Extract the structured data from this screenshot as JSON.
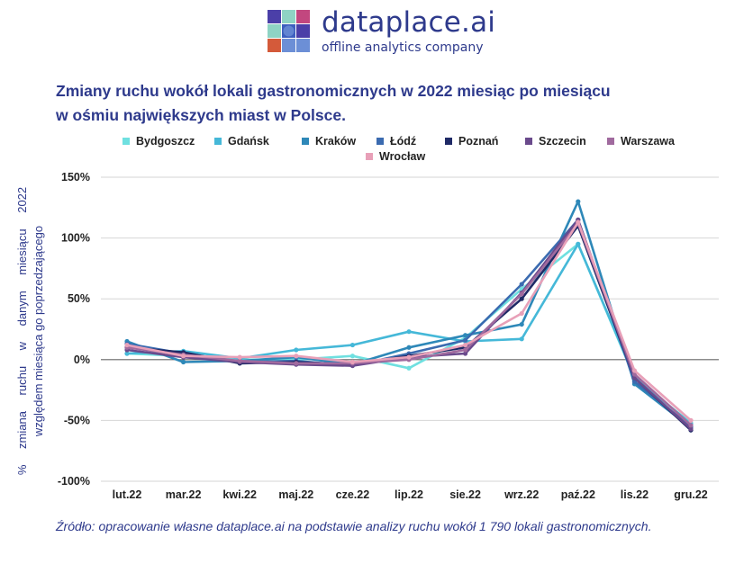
{
  "brand": {
    "name": "dataplace.ai",
    "tagline": "offline analytics company",
    "colors": [
      "#2e3a8c",
      "#4b3fa8",
      "#8fd3c4",
      "#c2477f",
      "#e0a03a",
      "#6c8fd6",
      "#3d5fbf",
      "#d45a3a"
    ]
  },
  "chart_data": {
    "type": "line",
    "title_lines": [
      "Zmiany ruchu wokół lokali gastronomicznych w 2022 miesiąc po miesiącu",
      "w ośmiu największych miast w Polsce."
    ],
    "ylabel_lines": [
      "% zmiana ruchu w danym miesiącu 2022",
      "względem miesiąca go poprzedzającego"
    ],
    "categories": [
      "lut.22",
      "mar.22",
      "kwi.22",
      "maj.22",
      "cze.22",
      "lip.22",
      "sie.22",
      "wrz.22",
      "paź.22",
      "lis.22",
      "gru.22"
    ],
    "ylim": [
      -100,
      150
    ],
    "yticks": [
      150,
      100,
      50,
      0,
      -50,
      -100
    ],
    "ytick_labels": [
      "150%",
      "100%",
      "50%",
      "0%",
      "-50%",
      "-100%"
    ],
    "grid": true,
    "legend_position": "top",
    "series": [
      {
        "name": "Bydgoszcz",
        "color": "#6fe0e0",
        "values": [
          5,
          3,
          0,
          0,
          3,
          -7,
          18,
          58,
          95,
          -15,
          -52
        ]
      },
      {
        "name": "Gdańsk",
        "color": "#45b8d8",
        "values": [
          5,
          7,
          1,
          8,
          12,
          23,
          15,
          17,
          95,
          -14,
          -53
        ]
      },
      {
        "name": "Kraków",
        "color": "#2e88b8",
        "values": [
          15,
          -2,
          -1,
          2,
          -4,
          10,
          20,
          29,
          130,
          -20,
          -56
        ]
      },
      {
        "name": "Łódź",
        "color": "#3b6bb0",
        "values": [
          13,
          5,
          -2,
          -1,
          -5,
          5,
          16,
          62,
          115,
          -18,
          -55
        ]
      },
      {
        "name": "Poznań",
        "color": "#1f2a66",
        "values": [
          10,
          6,
          -3,
          -2,
          -4,
          3,
          10,
          50,
          110,
          -15,
          -58
        ]
      },
      {
        "name": "Szczecin",
        "color": "#6a4a8c",
        "values": [
          8,
          2,
          -2,
          -4,
          -5,
          2,
          5,
          55,
          115,
          -15,
          -57
        ]
      },
      {
        "name": "Warszawa",
        "color": "#a06a9e",
        "values": [
          10,
          4,
          -1,
          -3,
          -3,
          0,
          8,
          54,
          112,
          -12,
          -54
        ]
      },
      {
        "name": "Wrocław",
        "color": "#e8a0b8",
        "values": [
          12,
          3,
          2,
          3,
          -2,
          2,
          12,
          38,
          113,
          -9,
          -50
        ]
      }
    ]
  },
  "source_text": "Źródło: opracowanie własne dataplace.ai na podstawie analizy ruchu wokół 1 790 lokali gastronomicznych."
}
